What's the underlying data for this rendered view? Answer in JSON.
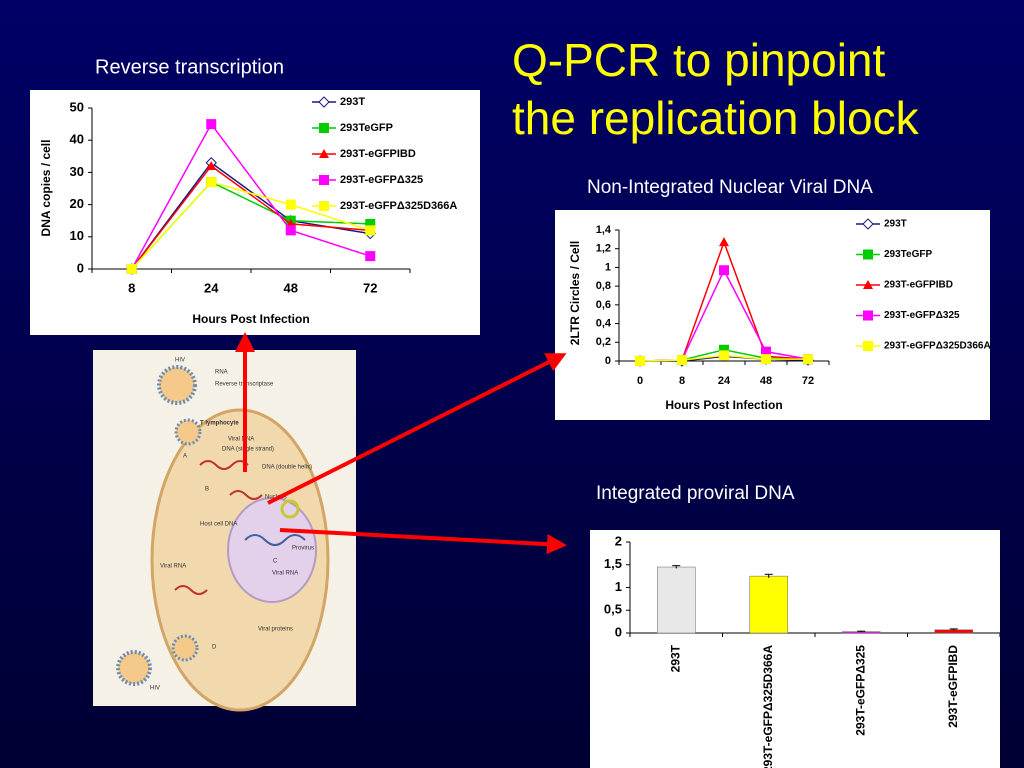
{
  "title": [
    "Q-PCR to pinpoint",
    "the replication block"
  ],
  "chart_data": [
    {
      "type": "line",
      "title": "Reverse transcription",
      "x_label": "Hours Post Infection",
      "y_label": "DNA copies / cell",
      "categories": [
        "8",
        "24",
        "48",
        "72"
      ],
      "ylim": [
        0,
        50
      ],
      "yticks": [
        0,
        10,
        20,
        30,
        40,
        50
      ],
      "series": [
        {
          "name": "293T",
          "color": "#1a1a80",
          "marker": "diamond",
          "marker_color": "#ffffff",
          "values": [
            0,
            33,
            15,
            11
          ]
        },
        {
          "name": "293TeGFP",
          "color": "#00cc00",
          "marker": "square",
          "values": [
            0,
            27,
            15,
            14
          ]
        },
        {
          "name": "293T-eGFPIBD",
          "color": "#ff0000",
          "marker": "triangle",
          "values": [
            0,
            32,
            14,
            12
          ]
        },
        {
          "name": "293T-eGFPΔ325",
          "color": "#ff00ff",
          "marker": "square",
          "values": [
            0,
            45,
            12,
            4
          ]
        },
        {
          "name": "293T-eGFPΔ325D366A",
          "color": "#ffff00",
          "marker": "square",
          "values": [
            0,
            27,
            20,
            12
          ]
        }
      ]
    },
    {
      "type": "line",
      "title": "Non-Integrated Nuclear Viral DNA",
      "x_label": "Hours Post Infection",
      "y_label": "2LTR Circles / Cell",
      "categories": [
        "0",
        "8",
        "24",
        "48",
        "72"
      ],
      "ylim": [
        0,
        1.4
      ],
      "yticks": [
        0,
        {
          "value": 0.2,
          "label": "0,2"
        },
        {
          "value": 0.4,
          "label": "0,4"
        },
        {
          "value": 0.6,
          "label": "0,6"
        },
        {
          "value": 0.8,
          "label": "0,8"
        },
        1,
        {
          "value": 1.2,
          "label": "1,2"
        },
        {
          "value": 1.4,
          "label": "1,4"
        }
      ],
      "series": [
        {
          "name": "293T",
          "color": "#1a1a80",
          "marker": "diamond",
          "marker_color": "#ffffff",
          "values": [
            0,
            0,
            0.05,
            0.02,
            0.01
          ]
        },
        {
          "name": "293TeGFP",
          "color": "#00cc00",
          "marker": "square",
          "values": [
            0,
            0.01,
            0.12,
            0.03,
            0.02
          ]
        },
        {
          "name": "293T-eGFPIBD",
          "color": "#ff0000",
          "marker": "triangle",
          "values": [
            0,
            0.01,
            1.27,
            0.05,
            0.02
          ]
        },
        {
          "name": "293T-eGFPΔ325",
          "color": "#ff00ff",
          "marker": "square",
          "values": [
            0,
            0.01,
            0.97,
            0.1,
            0.02
          ]
        },
        {
          "name": "293T-eGFPΔ325D366A",
          "color": "#ffff00",
          "marker": "square",
          "values": [
            0,
            0.01,
            0.06,
            0.02,
            0.02
          ]
        }
      ]
    },
    {
      "type": "bar",
      "title": "Integrated proviral DNA",
      "categories": [
        "293T",
        "293T-eGFPΔ325D366A",
        "293T-eGFPΔ325",
        "293T-eGFPIBD"
      ],
      "values": [
        1.45,
        1.25,
        0.03,
        0.07
      ],
      "errors": [
        0.03,
        0.04,
        0.01,
        0.02
      ],
      "colors": [
        "#e8e8e8",
        "#ffff00",
        "#ff00ff",
        "#ff0000"
      ],
      "ylim": [
        0,
        2
      ],
      "yticks": [
        0,
        {
          "value": 0.5,
          "label": "0,5"
        },
        1,
        {
          "value": 1.5,
          "label": "1,5"
        },
        2
      ]
    }
  ],
  "diagram": {
    "labels": [
      "HIV",
      "RNA",
      "Reverse transcriptase",
      "T lymphocyte",
      "Viral DNA",
      "DNA (single strand)",
      "DNA (double helix)",
      "Nucleus",
      "Host cell DNA",
      "Provirus",
      "Viral RNA",
      "Viral RNA",
      "Viral proteins",
      "HIV",
      "A",
      "B",
      "C",
      "D"
    ]
  }
}
